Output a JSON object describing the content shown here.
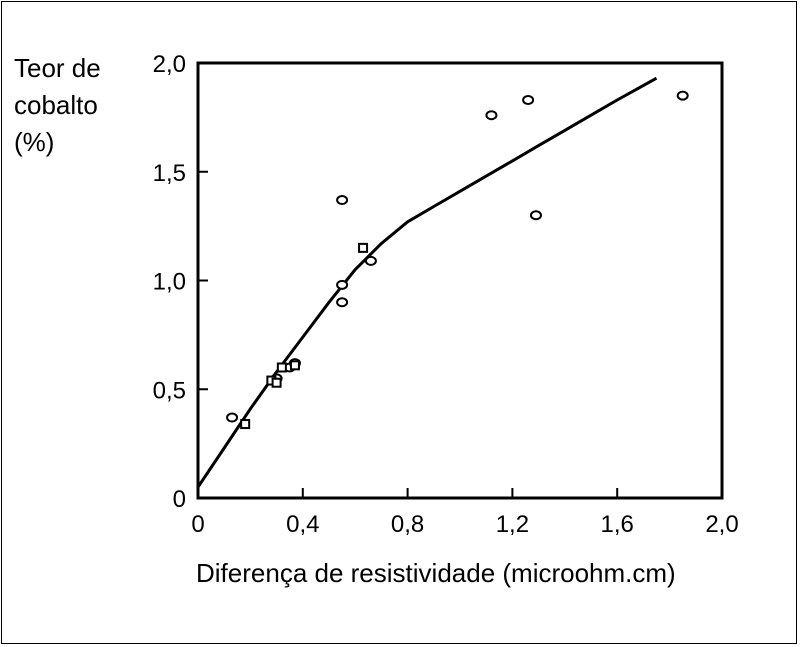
{
  "chart_data": {
    "type": "scatter",
    "title": "",
    "ylabel_lines": [
      "Teor de",
      "cobalto",
      "(%)"
    ],
    "xlabel": "Diferença de resistividade (microohm.cm)",
    "xlim": [
      0,
      2.0
    ],
    "ylim": [
      0,
      2.0
    ],
    "x_ticks": [
      {
        "value": 0,
        "label": "0"
      },
      {
        "value": 0.4,
        "label": "0,4"
      },
      {
        "value": 0.8,
        "label": "0,8"
      },
      {
        "value": 1.2,
        "label": "1,2"
      },
      {
        "value": 1.6,
        "label": "1,6"
      },
      {
        "value": 2.0,
        "label": "2,0"
      }
    ],
    "y_ticks": [
      {
        "value": 0,
        "label": "0"
      },
      {
        "value": 0.5,
        "label": "0,5"
      },
      {
        "value": 1.0,
        "label": "1,0"
      },
      {
        "value": 1.5,
        "label": "1,5"
      },
      {
        "value": 2.0,
        "label": "2,0"
      }
    ],
    "grid": false,
    "series": [
      {
        "marker": "circle",
        "points": [
          [
            0.13,
            0.37
          ],
          [
            0.3,
            0.55
          ],
          [
            0.35,
            0.6
          ],
          [
            0.37,
            0.62
          ],
          [
            0.55,
            0.98
          ],
          [
            0.55,
            0.9
          ],
          [
            0.55,
            1.37
          ],
          [
            0.66,
            1.09
          ],
          [
            1.12,
            1.76
          ],
          [
            1.26,
            1.83
          ],
          [
            1.29,
            1.3
          ],
          [
            1.85,
            1.85
          ]
        ]
      },
      {
        "marker": "square",
        "points": [
          [
            0.18,
            0.34
          ],
          [
            0.28,
            0.54
          ],
          [
            0.3,
            0.53
          ],
          [
            0.32,
            0.6
          ],
          [
            0.37,
            0.61
          ],
          [
            0.63,
            1.15
          ]
        ]
      },
      {
        "marker": "line",
        "points": [
          [
            0.0,
            0.05
          ],
          [
            0.1,
            0.23
          ],
          [
            0.2,
            0.41
          ],
          [
            0.3,
            0.58
          ],
          [
            0.4,
            0.74
          ],
          [
            0.5,
            0.9
          ],
          [
            0.6,
            1.05
          ],
          [
            0.7,
            1.17
          ],
          [
            0.8,
            1.27
          ],
          [
            0.9,
            1.34
          ],
          [
            1.0,
            1.41
          ],
          [
            1.1,
            1.48
          ],
          [
            1.2,
            1.55
          ],
          [
            1.3,
            1.62
          ],
          [
            1.4,
            1.69
          ],
          [
            1.5,
            1.76
          ],
          [
            1.6,
            1.83
          ],
          [
            1.75,
            1.93
          ]
        ]
      }
    ]
  }
}
